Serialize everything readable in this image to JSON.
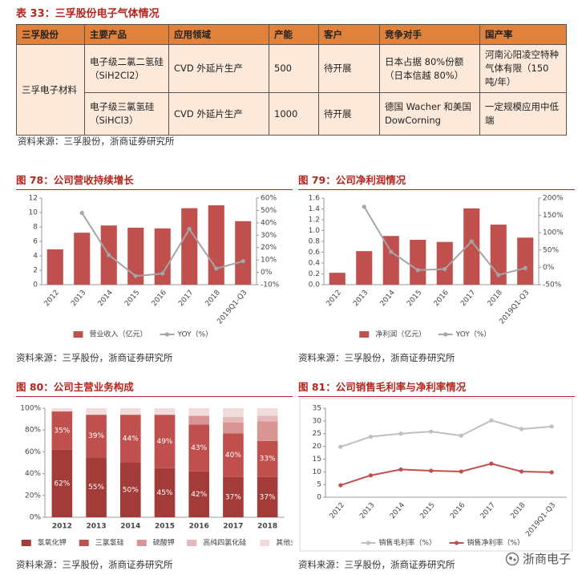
{
  "table": {
    "title": "表 33：三孚股份电子气体情况",
    "header": [
      "三孚股份",
      "主要产品",
      "应用领域",
      "产能",
      "客户",
      "竞争对手",
      "国产率"
    ],
    "rows": [
      [
        "三孚电子材料",
        "电子级二氯二氢硅（SiH2Cl2）",
        "CVD 外延片生产",
        "500",
        "待开展",
        "日本占据 80%份额（日本信越 80%）",
        "河南沁阳凌空特种气体有限（150 吨/年）"
      ],
      [
        "电子级三氯氢硅（SiHCl3）",
        "CVD 外延片生产",
        "1000",
        "待开展",
        "德国 Wacher 和美国 DowCorning",
        "一定规模应用中低端"
      ]
    ],
    "source": "资料来源：三孚股份，浙商证券研究所"
  },
  "chart_data": [
    {
      "type": "bar",
      "title": "图 78：公司营收持续增长",
      "source": "资料来源：三孚股份，浙商证券研究所",
      "categories": [
        "2012",
        "2013",
        "2014",
        "2015",
        "2016",
        "2017",
        "2018",
        "2019Q1-Q3"
      ],
      "series": [
        {
          "name": "营业收入（亿元）",
          "type": "bar",
          "color": "#c0504d",
          "values": [
            4.9,
            7.2,
            8.2,
            7.9,
            7.8,
            10.6,
            11.0,
            8.8
          ]
        },
        {
          "name": "YOY（%）",
          "type": "line",
          "axis": "y2",
          "color": "#a5a5a5",
          "values": [
            null,
            48,
            14,
            -3,
            -1,
            35,
            3,
            9
          ]
        }
      ],
      "ylim": [
        0,
        12
      ],
      "yticks": [
        0,
        2,
        4,
        6,
        8,
        10,
        12
      ],
      "y2lim": [
        -10,
        60
      ],
      "y2ticks": [
        {
          "value": -10,
          "label": "-10%"
        },
        {
          "value": 0,
          "label": "0%"
        },
        {
          "value": 10,
          "label": "10%"
        },
        {
          "value": 20,
          "label": "20%"
        },
        {
          "value": 30,
          "label": "30%"
        },
        {
          "value": 40,
          "label": "40%"
        },
        {
          "value": 50,
          "label": "50%"
        },
        {
          "value": 60,
          "label": "60%"
        }
      ]
    },
    {
      "type": "bar",
      "title": "图 79：公司净利润情况",
      "source": "资料来源：三孚股份，浙商证券研究所",
      "categories": [
        "2012",
        "2013",
        "2014",
        "2015",
        "2016",
        "2017",
        "2018",
        "2019Q1-Q3"
      ],
      "series": [
        {
          "name": "净利润（亿元）",
          "type": "bar",
          "color": "#c0504d",
          "values": [
            0.22,
            0.62,
            0.9,
            0.83,
            0.79,
            1.41,
            1.11,
            0.87
          ]
        },
        {
          "name": "YOY（%）",
          "type": "line",
          "axis": "y2",
          "color": "#a5a5a5",
          "values": [
            null,
            175,
            45,
            -8,
            -5,
            75,
            -22,
            -2
          ]
        }
      ],
      "ylim": [
        0,
        1.6
      ],
      "yticks": [
        {
          "value": 0,
          "label": "0.0"
        },
        0.2,
        0.4,
        0.6,
        0.8,
        {
          "value": 1,
          "label": "1.0"
        },
        1.2,
        1.4,
        1.6
      ],
      "y2lim": [
        -50,
        200
      ],
      "y2ticks": [
        {
          "value": -50,
          "label": "-50%"
        },
        {
          "value": 0,
          "label": "0%"
        },
        {
          "value": 50,
          "label": "50%"
        },
        {
          "value": 100,
          "label": "100%"
        },
        {
          "value": 150,
          "label": "150%"
        },
        {
          "value": 200,
          "label": "200%"
        }
      ]
    },
    {
      "type": "stacked_bar",
      "title": "图 80：公司主营业务构成",
      "source": "资料来源：三孚股份，浙商证券研究所",
      "categories": [
        "2012",
        "2013",
        "2014",
        "2015",
        "2016",
        "2017",
        "2018"
      ],
      "series": [
        {
          "name": "氢氧化钾",
          "color": "#a33b38",
          "values": [
            62,
            55,
            50,
            45,
            42,
            37,
            37
          ],
          "value_labels": [
            "62%",
            "55%",
            "50%",
            "45%",
            "42%",
            "37%",
            "37%"
          ]
        },
        {
          "name": "三氯氢硅",
          "color": "#c0504d",
          "values": [
            35,
            39,
            44,
            49,
            43,
            40,
            33
          ],
          "value_labels": [
            "35%",
            "39%",
            "44%",
            "49%",
            "43%",
            "40%",
            "33%"
          ]
        },
        {
          "name": "硫酸钾",
          "color": "#d99594",
          "values": [
            0,
            0,
            0,
            0,
            8,
            10,
            18
          ]
        },
        {
          "name": "高纯四氯化硅",
          "color": "#e6b9b8",
          "values": [
            0,
            0,
            0,
            0,
            0,
            5,
            5
          ]
        },
        {
          "name": "其他业务",
          "color": "#f2dcdb",
          "values": [
            3,
            6,
            6,
            6,
            7,
            8,
            7
          ]
        }
      ],
      "ylim": [
        0,
        100
      ],
      "yticks": [
        {
          "value": 0,
          "label": "0%"
        },
        {
          "value": 20,
          "label": "20%"
        },
        {
          "value": 40,
          "label": "40%"
        },
        {
          "value": 60,
          "label": "60%"
        },
        {
          "value": 80,
          "label": "80%"
        },
        {
          "value": 100,
          "label": "100%"
        }
      ]
    },
    {
      "type": "line",
      "title": "图 81：公司销售毛利率与净利率情况",
      "source": "资料来源：三孚股份，浙商证券研究所",
      "categories": [
        "2012",
        "2013",
        "2014",
        "2015",
        "2016",
        "2017",
        "2018",
        "2019Q1-Q3"
      ],
      "series": [
        {
          "name": "销售毛利率（%）",
          "color": "#bfbfbf",
          "values": [
            19.8,
            23.8,
            25.0,
            25.8,
            24.2,
            30.2,
            26.8,
            27.8
          ]
        },
        {
          "name": "销售净利率（%）",
          "color": "#c0504d",
          "values": [
            4.7,
            8.6,
            10.9,
            10.4,
            10.1,
            13.2,
            10.1,
            9.8
          ]
        }
      ],
      "ylim": [
        0,
        35
      ],
      "yticks": [
        0,
        5,
        10,
        15,
        20,
        25,
        30,
        35
      ]
    }
  ],
  "watermark": "浙商电子"
}
